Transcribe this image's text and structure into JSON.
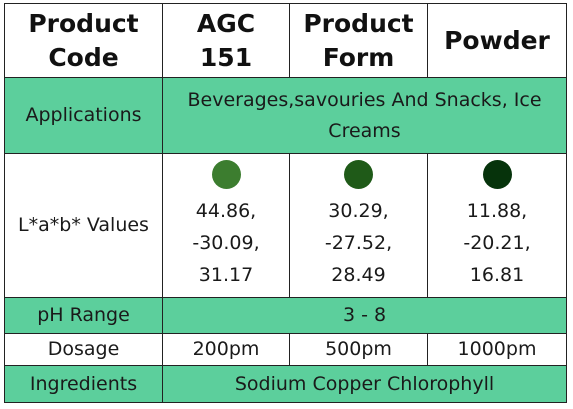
{
  "header": {
    "product_code_label": "Product Code",
    "product_code": "AGC 151",
    "product_form_label": "Product Form",
    "product_form": "Powder"
  },
  "applications": {
    "label": "Applications",
    "value": "Beverages,savouries And Snacks, Ice Creams"
  },
  "lab": {
    "label": "L*a*b* Values",
    "samples": [
      {
        "color": "#3c7d2f",
        "L": "44.86,",
        "a": "-30.09,",
        "b": "31.17"
      },
      {
        "color": "#1f5a18",
        "L": "30.29,",
        "a": "-27.52,",
        "b": "28.49"
      },
      {
        "color": "#06330b",
        "L": "11.88,",
        "a": "-20.21,",
        "b": "16.81"
      }
    ]
  },
  "ph": {
    "label": "pH Range",
    "value": "3 - 8"
  },
  "dosage": {
    "label": "Dosage",
    "values": [
      "200pm",
      "500pm",
      "1000pm"
    ]
  },
  "ingredients": {
    "label": "Ingredients",
    "value": "Sodium Copper Chlorophyll"
  },
  "colors": {
    "accent_row": "#5ccf9c",
    "border": "#222222"
  }
}
